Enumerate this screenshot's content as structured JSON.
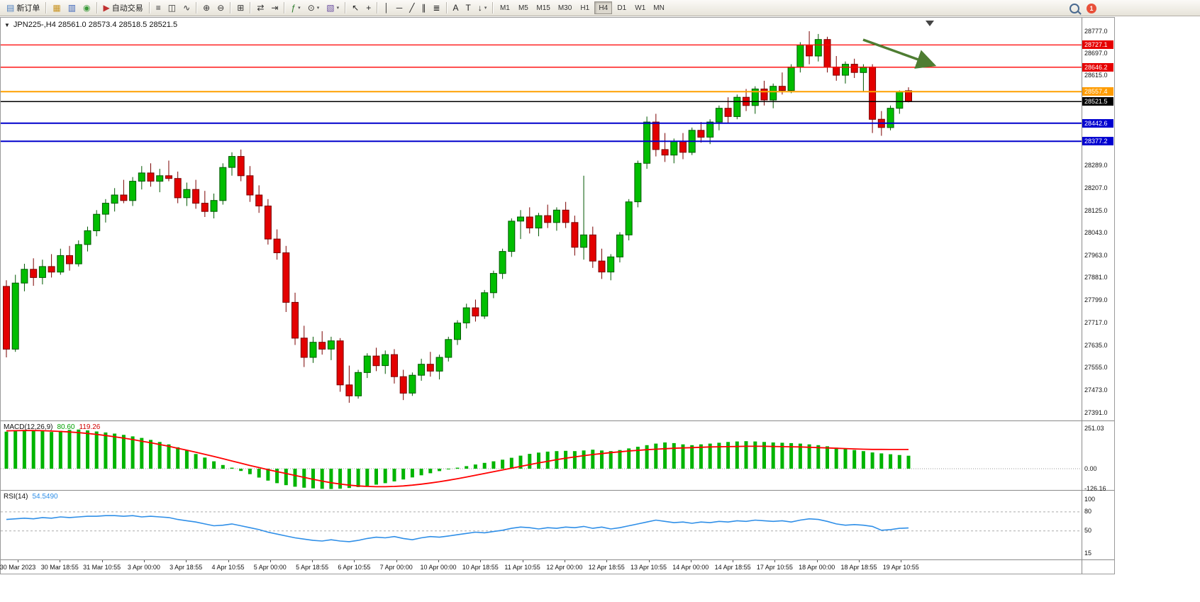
{
  "toolbar": {
    "new_order_label": "新订单",
    "autotrading_label": "自动交易",
    "items": [
      {
        "name": "new-order",
        "label": "新订单",
        "glyph": "▤",
        "color": "#4c7dbe"
      },
      {
        "name": "sep"
      },
      {
        "name": "chart-window",
        "glyph": "▦",
        "color": "#c8921e"
      },
      {
        "name": "profiles",
        "glyph": "▥",
        "color": "#3a62b8"
      },
      {
        "name": "data-window",
        "glyph": "◉",
        "color": "#3a9a3a"
      },
      {
        "name": "sep"
      },
      {
        "name": "autotrading",
        "label": "自动交易",
        "glyph": "▶",
        "color": "#c03030"
      },
      {
        "name": "sep"
      },
      {
        "name": "bars-mode",
        "glyph": "≡",
        "color": "#333333"
      },
      {
        "name": "candles-mode",
        "glyph": "◫",
        "color": "#333333"
      },
      {
        "name": "line-mode",
        "glyph": "∿",
        "color": "#333333"
      },
      {
        "name": "sep"
      },
      {
        "name": "zoom-in",
        "glyph": "⊕",
        "color": "#333333"
      },
      {
        "name": "zoom-out",
        "glyph": "⊖",
        "color": "#333333"
      },
      {
        "name": "sep"
      },
      {
        "name": "tile-windows",
        "glyph": "⊞",
        "color": "#333333"
      },
      {
        "name": "sep"
      },
      {
        "name": "auto-scroll",
        "glyph": "⇄",
        "color": "#333333"
      },
      {
        "name": "chart-shift",
        "glyph": "⇥",
        "color": "#333333"
      },
      {
        "name": "sep"
      },
      {
        "name": "indicators",
        "glyph": "ƒ",
        "color": "#2a7a2a",
        "caret": true
      },
      {
        "name": "periods",
        "glyph": "⊙",
        "color": "#333333",
        "caret": true
      },
      {
        "name": "templates",
        "glyph": "▧",
        "color": "#6a4fa0",
        "caret": true
      },
      {
        "name": "sep"
      },
      {
        "name": "cursor",
        "glyph": "↖",
        "color": "#222222"
      },
      {
        "name": "crosshair",
        "glyph": "+",
        "color": "#222222"
      },
      {
        "name": "sep"
      },
      {
        "name": "vertical-line",
        "glyph": "│",
        "color": "#222222"
      },
      {
        "name": "horizontal-line",
        "glyph": "─",
        "color": "#222222"
      },
      {
        "name": "trendline",
        "glyph": "╱",
        "color": "#222222"
      },
      {
        "name": "channel",
        "glyph": "∥",
        "color": "#222222"
      },
      {
        "name": "fibonacci",
        "glyph": "≣",
        "color": "#222222"
      },
      {
        "name": "sep"
      },
      {
        "name": "text",
        "glyph": "A",
        "color": "#222222"
      },
      {
        "name": "text-label",
        "glyph": "T",
        "color": "#222222"
      },
      {
        "name": "arrows-tool",
        "glyph": "↓",
        "color": "#222222",
        "caret": true
      },
      {
        "name": "sep"
      }
    ],
    "timeframes": [
      "M1",
      "M5",
      "M15",
      "M30",
      "H1",
      "H4",
      "D1",
      "W1",
      "MN"
    ],
    "active_timeframe": "H4",
    "notification_count": "1"
  },
  "chart": {
    "title": "JPN225-,H4 28561.0 28573.4 28518.5 28521.5",
    "symbol": "JPN225-",
    "period": "H4",
    "ohlc": {
      "open": "28561.0",
      "high": "28573.4",
      "low": "28518.5",
      "close": "28521.5"
    },
    "y_axis_ticks": [
      28777.0,
      28697.0,
      28615.0,
      28289.0,
      28207.0,
      28125.0,
      28043.0,
      27963.0,
      27881.0,
      27799.0,
      27717.0,
      27635.0,
      27555.0,
      27473.0,
      27391.0
    ],
    "price_lines": [
      {
        "price": 28727.1,
        "label": "28727.1",
        "line_color": "#ff0000",
        "line_width": 1.3,
        "badge_color": "#e60000"
      },
      {
        "price": 28646.2,
        "label": "28646.2",
        "line_color": "#ff0000",
        "line_width": 1.3,
        "badge_color": "#e60000"
      },
      {
        "price": 28557.4,
        "label": "28557.4",
        "line_color": "#ffa000",
        "line_width": 2,
        "badge_color": "#ff9c00"
      },
      {
        "price": 28521.5,
        "label": "28521.5",
        "line_color": "#000000",
        "line_width": 1.5,
        "badge_color": "#000000"
      },
      {
        "price": 28442.6,
        "label": "28442.6",
        "line_color": "#0000cc",
        "line_width": 2,
        "badge_color": "#0000d0"
      },
      {
        "price": 28377.2,
        "label": "28377.2",
        "line_color": "#0000cc",
        "line_width": 2,
        "badge_color": "#0000d0"
      }
    ],
    "annotation_arrow_color": "#4e7d32",
    "x_axis_labels": [
      "30 Mar 2023",
      "30 Mar 18:55",
      "31 Mar 10:55",
      "3 Apr 00:00",
      "3 Apr 18:55",
      "4 Apr 10:55",
      "5 Apr 00:00",
      "5 Apr 18:55",
      "6 Apr 10:55",
      "7 Apr 00:00",
      "10 Apr 00:00",
      "10 Apr 18:55",
      "11 Apr 10:55",
      "12 Apr 00:00",
      "12 Apr 18:55",
      "13 Apr 10:55",
      "14 Apr 00:00",
      "14 Apr 18:55",
      "17 Apr 10:55",
      "18 Apr 00:00",
      "18 Apr 18:55",
      "19 Apr 10:55"
    ]
  },
  "chart_data": {
    "type": "candlestick",
    "symbol": "JPN225-",
    "timeframe": "H4",
    "colors": {
      "bull": "#00be00",
      "bull_border": "#005800",
      "bear": "#e30000",
      "bear_border": "#7a0000",
      "macd_hist": "#00b400",
      "macd_signal": "#ff0000",
      "rsi_line": "#2f8fe8"
    },
    "candles": [
      [
        27850,
        27872,
        27592,
        27622
      ],
      [
        27622,
        27892,
        27612,
        27862
      ],
      [
        27862,
        27932,
        27832,
        27912
      ],
      [
        27912,
        27952,
        27852,
        27882
      ],
      [
        27882,
        27947,
        27857,
        27922
      ],
      [
        27922,
        27967,
        27882,
        27902
      ],
      [
        27902,
        27987,
        27892,
        27962
      ],
      [
        27962,
        27997,
        27907,
        27932
      ],
      [
        27932,
        28017,
        27922,
        28002
      ],
      [
        28002,
        28067,
        27977,
        28052
      ],
      [
        28052,
        28127,
        28032,
        28112
      ],
      [
        28112,
        28167,
        28082,
        28152
      ],
      [
        28152,
        28207,
        28122,
        28182
      ],
      [
        28182,
        28237,
        28152,
        28162
      ],
      [
        28162,
        28247,
        28142,
        28232
      ],
      [
        28232,
        28287,
        28202,
        28262
      ],
      [
        28262,
        28297,
        28212,
        28232
      ],
      [
        28232,
        28277,
        28192,
        28252
      ],
      [
        28252,
        28307,
        28232,
        28242
      ],
      [
        28242,
        28267,
        28152,
        28172
      ],
      [
        28172,
        28227,
        28142,
        28202
      ],
      [
        28202,
        28237,
        28132,
        28152
      ],
      [
        28152,
        28197,
        28102,
        28122
      ],
      [
        28122,
        28187,
        28097,
        28162
      ],
      [
        28162,
        28297,
        28147,
        28282
      ],
      [
        28282,
        28337,
        28252,
        28322
      ],
      [
        28322,
        28347,
        28232,
        28252
      ],
      [
        28252,
        28287,
        28157,
        28182
      ],
      [
        28182,
        28217,
        28117,
        28142
      ],
      [
        28142,
        28167,
        28002,
        28022
      ],
      [
        28022,
        28057,
        27947,
        27972
      ],
      [
        27972,
        27997,
        27757,
        27792
      ],
      [
        27792,
        27827,
        27637,
        27662
      ],
      [
        27662,
        27707,
        27557,
        27592
      ],
      [
        27592,
        27667,
        27572,
        27647
      ],
      [
        27647,
        27687,
        27602,
        27622
      ],
      [
        27622,
        27667,
        27582,
        27652
      ],
      [
        27652,
        27662,
        27467,
        27492
      ],
      [
        27492,
        27562,
        27427,
        27452
      ],
      [
        27452,
        27547,
        27442,
        27537
      ],
      [
        27537,
        27607,
        27517,
        27597
      ],
      [
        27597,
        27627,
        27542,
        27562
      ],
      [
        27562,
        27617,
        27532,
        27602
      ],
      [
        27602,
        27622,
        27497,
        27522
      ],
      [
        27522,
        27547,
        27437,
        27462
      ],
      [
        27462,
        27537,
        27452,
        27527
      ],
      [
        27527,
        27587,
        27507,
        27567
      ],
      [
        27567,
        27612,
        27522,
        27542
      ],
      [
        27542,
        27602,
        27512,
        27592
      ],
      [
        27592,
        27667,
        27577,
        27657
      ],
      [
        27657,
        27727,
        27637,
        27717
      ],
      [
        27717,
        27787,
        27697,
        27772
      ],
      [
        27772,
        27802,
        27722,
        27742
      ],
      [
        27742,
        27837,
        27732,
        27827
      ],
      [
        27827,
        27907,
        27807,
        27897
      ],
      [
        27897,
        27987,
        27877,
        27977
      ],
      [
        27977,
        28097,
        27957,
        28087
      ],
      [
        28087,
        28127,
        28022,
        28102
      ],
      [
        28102,
        28137,
        28042,
        28062
      ],
      [
        28062,
        28117,
        28032,
        28107
      ],
      [
        28107,
        28147,
        28062,
        28082
      ],
      [
        28082,
        28137,
        28052,
        28127
      ],
      [
        28127,
        28157,
        28062,
        28082
      ],
      [
        28082,
        28107,
        27962,
        27992
      ],
      [
        27992,
        28252,
        27947,
        28037
      ],
      [
        28037,
        28067,
        27917,
        27942
      ],
      [
        27942,
        27987,
        27877,
        27902
      ],
      [
        27902,
        27967,
        27872,
        27957
      ],
      [
        27957,
        28047,
        27937,
        28037
      ],
      [
        28037,
        28167,
        28017,
        28157
      ],
      [
        28157,
        28307,
        28137,
        28297
      ],
      [
        28297,
        28467,
        28277,
        28447
      ],
      [
        28447,
        28477,
        28322,
        28347
      ],
      [
        28347,
        28407,
        28302,
        28327
      ],
      [
        28327,
        28387,
        28297,
        28377
      ],
      [
        28377,
        28407,
        28312,
        28337
      ],
      [
        28337,
        28427,
        28327,
        28417
      ],
      [
        28417,
        28447,
        28372,
        28392
      ],
      [
        28392,
        28457,
        28367,
        28447
      ],
      [
        28447,
        28507,
        28417,
        28497
      ],
      [
        28497,
        28537,
        28442,
        28467
      ],
      [
        28467,
        28547,
        28457,
        28537
      ],
      [
        28537,
        28567,
        28487,
        28507
      ],
      [
        28507,
        28577,
        28477,
        28567
      ],
      [
        28567,
        28597,
        28507,
        28527
      ],
      [
        28527,
        28587,
        28497,
        28577
      ],
      [
        28577,
        28627,
        28547,
        28562
      ],
      [
        28562,
        28657,
        28552,
        28647
      ],
      [
        28647,
        28737,
        28627,
        28727
      ],
      [
        28727,
        28777,
        28657,
        28687
      ],
      [
        28687,
        28767,
        28667,
        28747
      ],
      [
        28747,
        28757,
        28627,
        28647
      ],
      [
        28647,
        28687,
        28597,
        28617
      ],
      [
        28617,
        28667,
        28587,
        28657
      ],
      [
        28657,
        28677,
        28607,
        28627
      ],
      [
        28627,
        28657,
        28557,
        28647
      ],
      [
        28647,
        28657,
        28407,
        28457
      ],
      [
        28457,
        28487,
        28397,
        28427
      ],
      [
        28427,
        28507,
        28417,
        28497
      ],
      [
        28497,
        28562,
        28477,
        28557
      ],
      [
        28561,
        28573.4,
        28518.5,
        28521.5
      ]
    ],
    "macd": {
      "name": "MACD(12,26,9)",
      "value_main": "80.60",
      "value_signal": "119.26",
      "axis_labels": [
        {
          "v": 251.03,
          "t": "251.03"
        },
        {
          "v": 0,
          "t": "0.00"
        },
        {
          "v": -126.16,
          "t": "-126.16"
        }
      ],
      "histogram": [
        230,
        236,
        241,
        238,
        233,
        228,
        235,
        241,
        243,
        238,
        231,
        225,
        218,
        210,
        201,
        191,
        179,
        166,
        151,
        133,
        113,
        91,
        69,
        46,
        23,
        6,
        -14,
        -34,
        -55,
        -74,
        -90,
        -102,
        -112,
        -118,
        -122,
        -125,
        -126,
        -124,
        -120,
        -114,
        -107,
        -99,
        -90,
        -79,
        -67,
        -54,
        -41,
        -28,
        -15,
        -4,
        6,
        16,
        26,
        36,
        46,
        56,
        68,
        81,
        92,
        100,
        106,
        109,
        111,
        109,
        113,
        118,
        113,
        109,
        116,
        126,
        136,
        146,
        156,
        163,
        159,
        151,
        146,
        151,
        156,
        161,
        166,
        169,
        171,
        169,
        166,
        163,
        161,
        159,
        156,
        151,
        146,
        139,
        131,
        123,
        116,
        109,
        101,
        95,
        90,
        85,
        80.6
      ],
      "signal": [
        235,
        236,
        237,
        237,
        236,
        234,
        231,
        228,
        224,
        219,
        213,
        206,
        198,
        190,
        181,
        171,
        161,
        150,
        139,
        127,
        115,
        102,
        89,
        76,
        62,
        48,
        34,
        20,
        7,
        -6,
        -18,
        -30,
        -42,
        -54,
        -66,
        -77,
        -87,
        -95,
        -102,
        -107,
        -110,
        -112,
        -112,
        -110,
        -107,
        -102,
        -96,
        -89,
        -81,
        -72,
        -62,
        -52,
        -41,
        -30,
        -19,
        -8,
        3,
        14,
        25,
        36,
        46,
        56,
        65,
        73,
        81,
        88,
        94,
        100,
        105,
        110,
        114,
        118,
        121,
        124,
        127,
        129,
        131,
        133,
        135,
        136,
        137,
        138,
        139,
        139,
        139,
        138,
        137,
        136,
        135,
        133,
        131,
        129,
        127,
        125,
        123,
        121,
        120,
        119.6,
        119.4,
        119.3,
        119.26
      ]
    },
    "rsi": {
      "name": "RSI(14)",
      "value": "54.5490",
      "axis_labels": [
        {
          "v": 100,
          "t": "100"
        },
        {
          "v": 80,
          "t": "80"
        },
        {
          "v": 50,
          "t": "50"
        },
        {
          "v": 15,
          "t": "15"
        }
      ],
      "levels": [
        80,
        50
      ],
      "values": [
        68,
        69,
        70,
        69,
        71,
        70,
        72,
        71,
        72,
        73,
        73,
        74,
        74,
        73,
        74,
        72,
        73,
        72,
        71,
        68,
        66,
        64,
        61,
        58,
        59,
        61,
        58,
        55,
        52,
        48,
        45,
        42,
        39,
        37,
        35,
        34,
        36,
        34,
        33,
        35,
        38,
        40,
        39,
        41,
        38,
        36,
        39,
        41,
        40,
        42,
        44,
        46,
        48,
        47,
        49,
        51,
        54,
        56,
        55,
        53,
        55,
        54,
        56,
        55,
        57,
        54,
        56,
        53,
        55,
        58,
        61,
        64,
        67,
        65,
        63,
        64,
        62,
        64,
        63,
        65,
        64,
        66,
        65,
        67,
        66,
        65,
        66,
        64,
        67,
        69,
        68,
        65,
        61,
        59,
        60,
        59,
        57,
        51,
        52,
        54,
        54.55
      ]
    }
  }
}
